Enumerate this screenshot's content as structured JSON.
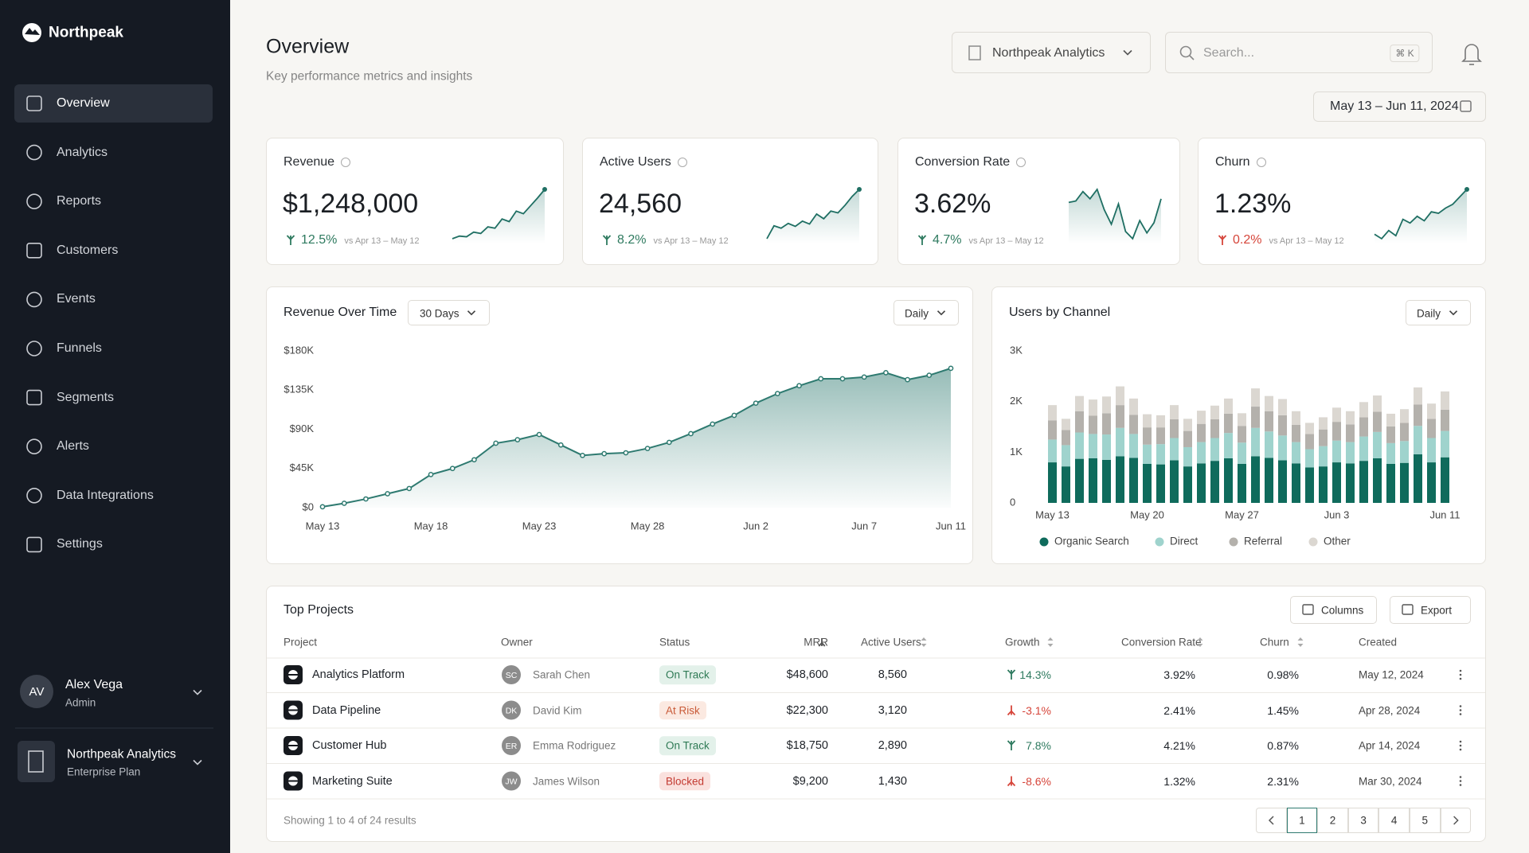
{
  "sidebar": {
    "brand": "Northpeak",
    "nav": [
      "Overview",
      "Analytics",
      "Reports",
      "Customers",
      "Events",
      "Funnels",
      "Segments",
      "Alerts",
      "Data Integrations",
      "Settings"
    ],
    "active": 0,
    "user": {
      "initials": "AV",
      "name": "Alex Vega",
      "role": "Admin"
    },
    "workspace": {
      "name": "Northpeak Analytics",
      "plan": "Enterprise Plan"
    }
  },
  "header": {
    "title": "Overview",
    "subtitle": "Key performance metrics and insights",
    "workspace_select": "Northpeak Analytics",
    "search_placeholder": "Search...",
    "search_shortcut": "⌘ K",
    "date_range": "May 13 – Jun 11, 2024"
  },
  "kpis": [
    {
      "label": "Revenue",
      "value": "$1,248,000",
      "change": "12.5%",
      "trend": "up",
      "tone": "good",
      "compare": "vs Apr 13 – May 12",
      "end_dot": true,
      "sparkline": [
        10,
        14,
        13,
        20,
        18,
        28,
        26,
        40,
        36,
        52,
        48,
        60,
        72,
        85
      ]
    },
    {
      "label": "Active Users",
      "value": "24,560",
      "change": "8.2%",
      "trend": "up",
      "tone": "good",
      "compare": "vs Apr 13 – May 12",
      "end_dot": true,
      "sparkline": [
        8,
        30,
        26,
        34,
        29,
        38,
        33,
        50,
        42,
        55,
        52,
        65,
        80,
        92
      ]
    },
    {
      "label": "Conversion Rate",
      "value": "3.62%",
      "change": "4.7%",
      "trend": "up",
      "tone": "good",
      "compare": "vs Apr 13 – May 12",
      "end_dot": false,
      "sparkline": [
        70,
        72,
        85,
        75,
        88,
        60,
        40,
        68,
        30,
        20,
        45,
        28,
        42,
        75
      ]
    },
    {
      "label": "Churn",
      "value": "1.23%",
      "change": "0.2%",
      "trend": "up",
      "tone": "bad",
      "compare": "vs Apr 13 – May 12",
      "end_dot": true,
      "sparkline": [
        20,
        14,
        25,
        18,
        40,
        35,
        44,
        38,
        50,
        48,
        55,
        60,
        70,
        80
      ]
    }
  ],
  "revenue_chart": {
    "type": "area",
    "title": "Revenue Over Time",
    "range": "30 Days",
    "interval": "Daily",
    "color": "#2e7a70",
    "categories": [
      "May 13",
      null,
      null,
      null,
      null,
      "May 18",
      null,
      null,
      null,
      null,
      "May 23",
      null,
      null,
      null,
      null,
      "May 28",
      null,
      null,
      null,
      null,
      "Jun 2",
      null,
      null,
      null,
      null,
      "Jun 7",
      null,
      null,
      null,
      "Jun 11"
    ],
    "values": [
      1000,
      5000,
      10000,
      16000,
      22000,
      38000,
      45000,
      55000,
      74000,
      78000,
      84000,
      72000,
      60000,
      62000,
      63000,
      68000,
      75000,
      85000,
      96000,
      106000,
      120000,
      131000,
      140000,
      148000,
      148000,
      150000,
      155000,
      147000,
      152000,
      160000
    ],
    "ylim": [
      0,
      180000
    ],
    "yticks": [
      {
        "value": 0,
        "label": "$0"
      },
      {
        "value": 45000,
        "label": "$45K"
      },
      {
        "value": 90000,
        "label": "$90K"
      },
      {
        "value": 135000,
        "label": "$135K"
      },
      {
        "value": 180000,
        "label": "$180K"
      }
    ]
  },
  "channel_chart": {
    "type": "stacked_bar",
    "title": "Users by Channel",
    "interval": "Daily",
    "categories": [
      "May 13",
      null,
      null,
      null,
      null,
      null,
      null,
      "May 20",
      null,
      null,
      null,
      null,
      null,
      null,
      "May 27",
      null,
      null,
      null,
      null,
      null,
      null,
      "Jun 3",
      null,
      null,
      null,
      null,
      null,
      null,
      null,
      "Jun 11"
    ],
    "series": [
      {
        "name": "Organic Search",
        "color": "#0f6b5c",
        "values": [
          800,
          720,
          870,
          880,
          850,
          920,
          890,
          770,
          760,
          840,
          720,
          780,
          830,
          880,
          770,
          920,
          890,
          840,
          780,
          700,
          720,
          800,
          780,
          830,
          880,
          770,
          790,
          960,
          800,
          900
        ]
      },
      {
        "name": "Direct",
        "color": "#9fd3cd",
        "values": [
          450,
          420,
          520,
          480,
          500,
          560,
          470,
          380,
          400,
          440,
          380,
          420,
          450,
          500,
          420,
          560,
          520,
          490,
          420,
          360,
          400,
          430,
          420,
          480,
          520,
          410,
          430,
          560,
          480,
          520
        ]
      },
      {
        "name": "Referral",
        "color": "#b4b1ac",
        "values": [
          380,
          300,
          420,
          360,
          420,
          450,
          380,
          340,
          330,
          370,
          320,
          360,
          370,
          380,
          330,
          420,
          400,
          400,
          340,
          300,
          330,
          370,
          350,
          380,
          400,
          330,
          360,
          420,
          380,
          420
        ]
      },
      {
        "name": "Other",
        "color": "#dbd7d1",
        "values": [
          300,
          220,
          300,
          320,
          330,
          370,
          320,
          260,
          240,
          280,
          240,
          260,
          270,
          300,
          250,
          360,
          300,
          320,
          270,
          220,
          240,
          280,
          260,
          300,
          320,
          250,
          270,
          340,
          300,
          360
        ]
      }
    ],
    "ylim": [
      0,
      3000
    ],
    "yticks": [
      0,
      {
        "value": 1000,
        "label": "1K"
      },
      {
        "value": 2000,
        "label": "2K"
      },
      {
        "value": 3000,
        "label": "3K"
      }
    ]
  },
  "table": {
    "title": "Top Projects",
    "actions": [
      "Columns",
      "Export"
    ],
    "columns": [
      {
        "label": "Project",
        "sort": null
      },
      {
        "label": "Owner",
        "sort": null
      },
      {
        "label": "Status",
        "sort": null
      },
      {
        "label": "MRR",
        "sort": "desc"
      },
      {
        "label": "Active Users",
        "sort": "both"
      },
      {
        "label": "Growth",
        "sort": "both"
      },
      {
        "label": "Conversion Rate",
        "sort": "both"
      },
      {
        "label": "Churn",
        "sort": "both"
      },
      {
        "label": "Created",
        "sort": null
      }
    ],
    "rows": [
      {
        "project": "Analytics Platform",
        "owner_initials": "SC",
        "owner": "Sarah Chen",
        "status": "On Track",
        "status_tone": "good",
        "mrr": "$48,600",
        "active_users": "8,560",
        "growth": "14.3%",
        "growth_trend": "up",
        "conversion": "3.92%",
        "churn": "0.98%",
        "created": "May 12, 2024"
      },
      {
        "project": "Data Pipeline",
        "owner_initials": "DK",
        "owner": "David Kim",
        "status": "At Risk",
        "status_tone": "warn",
        "mrr": "$22,300",
        "active_users": "3,120",
        "growth": "-3.1%",
        "growth_trend": "down",
        "conversion": "2.41%",
        "churn": "1.45%",
        "created": "Apr 28, 2024"
      },
      {
        "project": "Customer Hub",
        "owner_initials": "ER",
        "owner": "Emma Rodriguez",
        "status": "On Track",
        "status_tone": "good",
        "mrr": "$18,750",
        "active_users": "2,890",
        "growth": "7.8%",
        "growth_trend": "up",
        "conversion": "4.21%",
        "churn": "0.87%",
        "created": "Apr 14, 2024"
      },
      {
        "project": "Marketing Suite",
        "owner_initials": "JW",
        "owner": "James Wilson",
        "status": "Blocked",
        "status_tone": "bad",
        "mrr": "$9,200",
        "active_users": "1,430",
        "growth": "-8.6%",
        "growth_trend": "down",
        "conversion": "1.32%",
        "churn": "2.31%",
        "created": "Mar 30, 2024"
      }
    ],
    "footer": "Showing 1 to 4 of 24 results",
    "pages": [
      "1",
      "2",
      "3",
      "4",
      "5"
    ],
    "current_page": 0
  }
}
